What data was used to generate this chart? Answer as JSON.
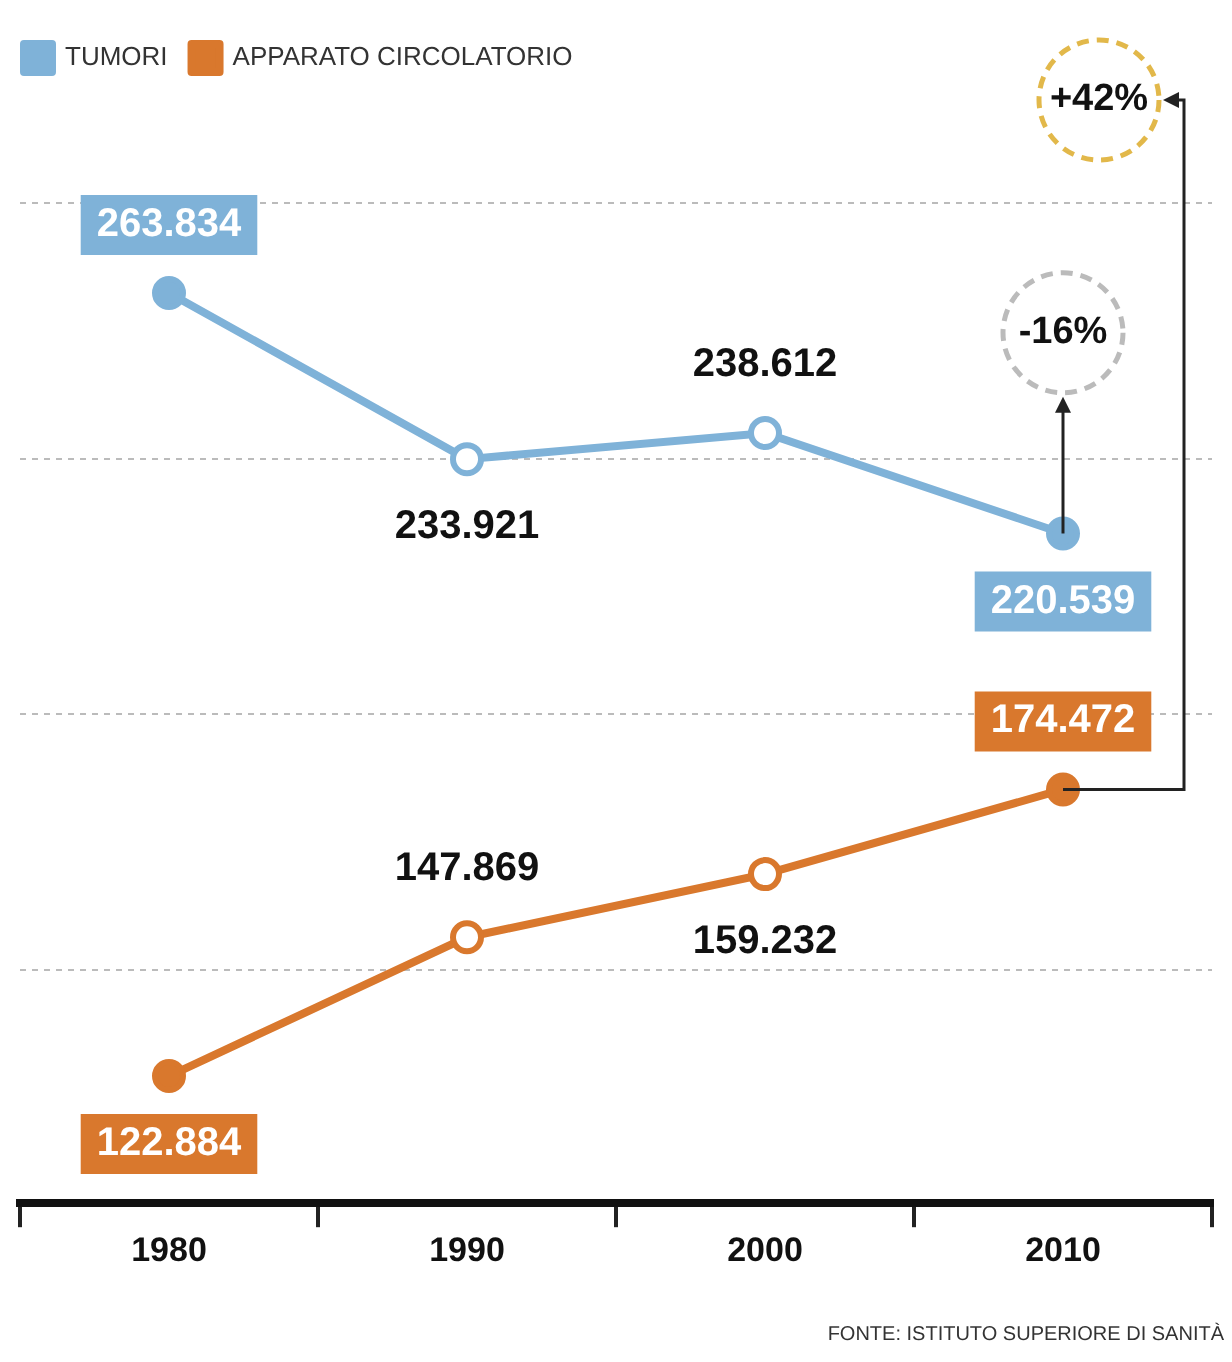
{
  "chart_data": {
    "type": "line",
    "categories": [
      "1980",
      "1990",
      "2000",
      "2010"
    ],
    "series": [
      {
        "name": "TUMORI",
        "color": "#7fb2d8",
        "values": [
          263834,
          233921,
          238612,
          220539
        ],
        "value_labels": [
          "263.834",
          "233.921",
          "238.612",
          "220.539"
        ]
      },
      {
        "name": "APPARATO CIRCOLATORIO",
        "color": "#d9782d",
        "values": [
          122884,
          147869,
          159232,
          174472
        ],
        "value_labels": [
          "122.884",
          "147.869",
          "159.232",
          "174.472"
        ]
      }
    ],
    "yticks": [
      {
        "value": 142000,
        "label": null
      },
      {
        "value": 188000,
        "label": null
      },
      {
        "value": 234000,
        "label": null
      },
      {
        "value": 280000,
        "label": null
      }
    ],
    "tick_labels": "x",
    "grid": "y",
    "legend": "top left",
    "marker": "circle",
    "line_style": "solid",
    "annotations": [
      "+42%",
      "-16%",
      "FONTE: ISTITUTO SUPERIORE DI SANITÀ"
    ]
  }
}
